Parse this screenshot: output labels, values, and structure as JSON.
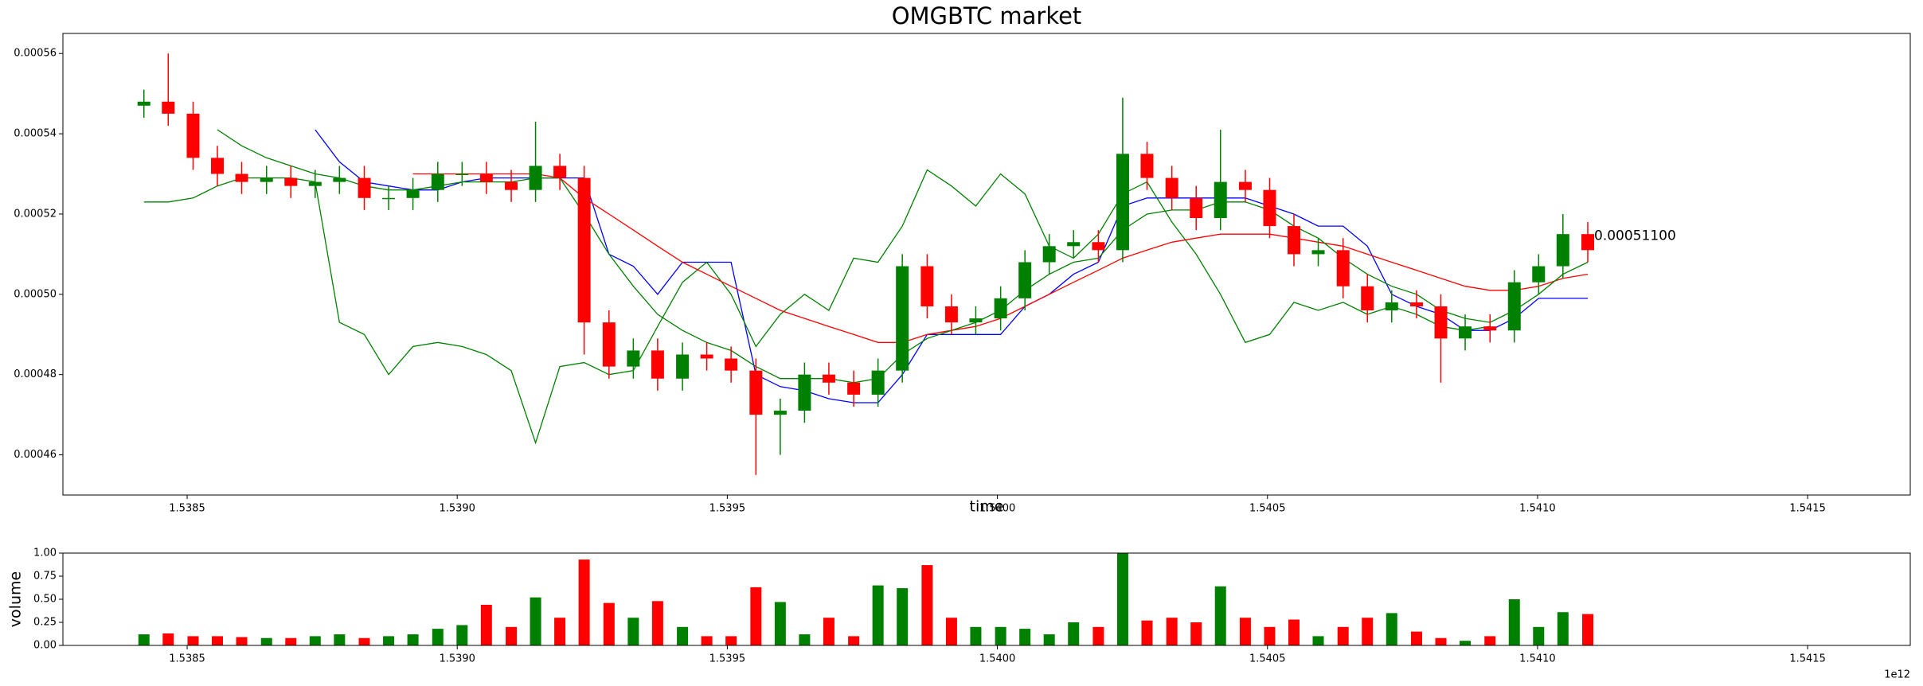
{
  "chart_data": [
    {
      "type": "candlestick",
      "title": "OMGBTC market",
      "xlabel": "time",
      "x_offset_label": "1e12",
      "up_color": "#008000",
      "down_color": "#ff0000",
      "xlim": [
        1.53827,
        1.54169
      ],
      "xticks": [
        1.5385,
        {
          "value": 1.539,
          "label": "1.5390"
        },
        1.5395,
        {
          "value": 1.54,
          "label": "1.5400"
        },
        1.5405,
        {
          "value": 1.541,
          "label": "1.5410"
        },
        1.5415
      ],
      "ylim": [
        0.00045,
        0.000565
      ],
      "yticks": [
        0.00046,
        0.00048,
        {
          "value": 0.0005,
          "label": "0.00050"
        },
        0.00052,
        0.00054,
        0.00056
      ],
      "x": [
        1.53842,
        1.538465,
        1.538511,
        1.538556,
        1.538601,
        1.538647,
        1.538692,
        1.538737,
        1.538782,
        1.538828,
        1.538873,
        1.538918,
        1.538964,
        1.539009,
        1.539054,
        1.5391,
        1.539145,
        1.53919,
        1.539235,
        1.539281,
        1.539326,
        1.539371,
        1.539417,
        1.539462,
        1.539507,
        1.539553,
        1.539598,
        1.539643,
        1.539688,
        1.539734,
        1.539779,
        1.539824,
        1.53987,
        1.539915,
        1.53996,
        1.540006,
        1.540051,
        1.540096,
        1.540141,
        1.540187,
        1.540232,
        1.540277,
        1.540323,
        1.540368,
        1.540413,
        1.540459,
        1.540504,
        1.540549,
        1.540594,
        1.54064,
        1.540685,
        1.54073,
        1.540776,
        1.540821,
        1.540866,
        1.540912,
        1.540957,
        1.541002,
        1.541047,
        1.541093
      ],
      "open": [
        0.000547,
        0.000548,
        0.000545,
        0.000534,
        0.00053,
        0.000528,
        0.000529,
        0.000527,
        0.000528,
        0.000529,
        0.000524,
        0.000524,
        0.000526,
        0.00053,
        0.00053,
        0.000528,
        0.000526,
        0.000532,
        0.000529,
        0.000493,
        0.000482,
        0.000486,
        0.000479,
        0.000485,
        0.000484,
        0.000481,
        0.00047,
        0.000471,
        0.00048,
        0.000478,
        0.000475,
        0.000481,
        0.000507,
        0.000497,
        0.000493,
        0.000494,
        0.000499,
        0.000508,
        0.000512,
        0.000513,
        0.000511,
        0.000535,
        0.000529,
        0.000524,
        0.000519,
        0.000528,
        0.000526,
        0.000517,
        0.00051,
        0.000511,
        0.000502,
        0.000496,
        0.000498,
        0.000497,
        0.000489,
        0.000492,
        0.000491,
        0.000503,
        0.000507,
        0.000515
      ],
      "close": [
        0.000548,
        0.000545,
        0.000534,
        0.00053,
        0.000528,
        0.000529,
        0.000527,
        0.000528,
        0.000529,
        0.000524,
        0.000524,
        0.000526,
        0.00053,
        0.00053,
        0.000528,
        0.000526,
        0.000532,
        0.000529,
        0.000493,
        0.000482,
        0.000486,
        0.000479,
        0.000485,
        0.000484,
        0.000481,
        0.00047,
        0.000471,
        0.00048,
        0.000478,
        0.000475,
        0.000481,
        0.000507,
        0.000497,
        0.000493,
        0.000494,
        0.000499,
        0.000508,
        0.000512,
        0.000513,
        0.000511,
        0.000535,
        0.000529,
        0.000524,
        0.000519,
        0.000528,
        0.000526,
        0.000517,
        0.00051,
        0.000511,
        0.000502,
        0.000496,
        0.000498,
        0.000497,
        0.000489,
        0.000492,
        0.000491,
        0.000503,
        0.000507,
        0.000515,
        0.000511
      ],
      "high": [
        0.000551,
        0.00056,
        0.000548,
        0.000537,
        0.000533,
        0.000532,
        0.000532,
        0.000531,
        0.000532,
        0.000532,
        0.000527,
        0.000529,
        0.000533,
        0.000533,
        0.000533,
        0.000531,
        0.000543,
        0.000535,
        0.000532,
        0.000496,
        0.000489,
        0.000489,
        0.000488,
        0.000488,
        0.000487,
        0.000484,
        0.000474,
        0.000483,
        0.000483,
        0.000481,
        0.000484,
        0.00051,
        0.00051,
        0.0005,
        0.000497,
        0.000502,
        0.000511,
        0.000515,
        0.000516,
        0.000516,
        0.000549,
        0.000538,
        0.000532,
        0.000527,
        0.000541,
        0.000531,
        0.000529,
        0.00052,
        0.000514,
        0.000514,
        0.000505,
        0.000501,
        0.000501,
        0.0005,
        0.000495,
        0.000495,
        0.000506,
        0.00051,
        0.00052,
        0.000518
      ],
      "low": [
        0.000544,
        0.000542,
        0.000531,
        0.000527,
        0.000525,
        0.000525,
        0.000524,
        0.000524,
        0.000525,
        0.000521,
        0.000521,
        0.000521,
        0.000523,
        0.000527,
        0.000525,
        0.000523,
        0.000523,
        0.000526,
        0.000485,
        0.000479,
        0.000479,
        0.000476,
        0.000476,
        0.000481,
        0.000478,
        0.000455,
        0.00046,
        0.000468,
        0.000475,
        0.000472,
        0.000472,
        0.000478,
        0.000494,
        0.00049,
        0.00049,
        0.000491,
        0.000496,
        0.000505,
        0.000509,
        0.000508,
        0.000508,
        0.000526,
        0.000521,
        0.000516,
        0.000516,
        0.000523,
        0.000514,
        0.000507,
        0.000507,
        0.000499,
        0.000493,
        0.000493,
        0.000494,
        0.000478,
        0.000486,
        0.000488,
        0.000488,
        0.0005,
        0.000504,
        0.000508
      ],
      "annotation": "0.00051100",
      "overlays": [
        {
          "color": "#0000ff",
          "values": [
            null,
            null,
            null,
            null,
            null,
            null,
            null,
            0.000541,
            0.000533,
            0.000528,
            0.000527,
            0.000526,
            0.000526,
            0.000528,
            0.000529,
            0.000529,
            0.000529,
            0.000529,
            0.000529,
            0.00051,
            0.000507,
            0.0005,
            0.000508,
            0.000508,
            0.000508,
            0.00048,
            0.000477,
            0.000476,
            0.000474,
            0.000473,
            0.000473,
            0.00048,
            0.00049,
            0.00049,
            0.00049,
            0.00049,
            0.000497,
            0.0005,
            0.000505,
            0.000508,
            0.000522,
            0.000524,
            0.000524,
            0.000524,
            0.000524,
            0.000524,
            0.000522,
            0.00052,
            0.000517,
            0.000517,
            0.000512,
            0.0005,
            0.000497,
            0.000495,
            0.000491,
            0.000491,
            0.000494,
            0.000499,
            0.000499,
            0.000499
          ]
        },
        {
          "color": "#008000",
          "values": [
            0.000523,
            0.000523,
            0.000524,
            0.000527,
            0.000529,
            0.000529,
            0.000529,
            0.000528,
            0.000493,
            0.00049,
            0.00048,
            0.000487,
            0.000488,
            0.000487,
            0.000485,
            0.000481,
            0.000463,
            0.000482,
            0.000483,
            0.00048,
            0.000481,
            0.000492,
            0.000503,
            0.000508,
            0.0005,
            0.000487,
            0.000495,
            0.0005,
            0.000496,
            0.000509,
            0.000508,
            0.000517,
            0.000531,
            0.000527,
            0.000522,
            0.00053,
            0.000525,
            0.000512,
            0.000509,
            0.000515,
            0.000525,
            0.000528,
            0.000518,
            0.00051,
            0.0005,
            0.000488,
            0.00049,
            0.000498,
            0.000496,
            0.000498,
            0.000495,
            0.000497,
            0.000495,
            0.000492,
            0.000491,
            0.000492,
            null,
            null,
            null,
            null
          ]
        },
        {
          "color": "#ff0000",
          "values": [
            null,
            null,
            null,
            null,
            null,
            null,
            null,
            null,
            null,
            null,
            null,
            0.00053,
            0.00053,
            0.00053,
            0.00053,
            0.00053,
            0.00053,
            0.000529,
            0.000524,
            0.00052,
            0.000516,
            0.000512,
            0.000508,
            0.000505,
            0.000502,
            0.000499,
            0.000496,
            0.000494,
            0.000492,
            0.00049,
            0.000488,
            0.000488,
            0.00049,
            0.000491,
            0.000492,
            0.000494,
            0.000497,
            0.0005,
            0.000503,
            0.000506,
            0.000509,
            0.000511,
            0.000513,
            0.000514,
            0.000515,
            0.000515,
            0.000515,
            0.000514,
            0.000513,
            0.000512,
            0.00051,
            0.000508,
            0.000506,
            0.000504,
            0.000502,
            0.000501,
            0.000501,
            0.000502,
            0.000504,
            0.000505
          ]
        },
        {
          "color": "#008000",
          "values": [
            null,
            null,
            null,
            0.000541,
            0.000537,
            0.000534,
            0.000532,
            0.00053,
            0.000529,
            0.000527,
            0.000526,
            0.000526,
            0.000527,
            0.000528,
            0.000528,
            0.000528,
            0.000529,
            0.000529,
            0.00052,
            0.00051,
            0.000502,
            0.000495,
            0.000491,
            0.000488,
            0.000486,
            0.000482,
            0.000479,
            0.000479,
            0.000479,
            0.000478,
            0.000479,
            0.000485,
            0.000489,
            0.000491,
            0.000493,
            0.000496,
            0.000501,
            0.000505,
            0.000508,
            0.000509,
            0.000516,
            0.00052,
            0.000521,
            0.000521,
            0.000523,
            0.000523,
            0.000521,
            0.000517,
            0.000514,
            0.000509,
            0.000505,
            0.000502,
            0.0005,
            0.000496,
            0.000494,
            0.000493,
            0.000496,
            0.0005,
            0.000505,
            0.000508
          ]
        }
      ]
    },
    {
      "type": "bar",
      "ylabel": "volume",
      "x_offset_label": "1e12",
      "xlim": [
        1.53827,
        1.54169
      ],
      "xticks": [
        1.5385,
        {
          "value": 1.539,
          "label": "1.5390"
        },
        1.5395,
        {
          "value": 1.54,
          "label": "1.5400"
        },
        1.5405,
        {
          "value": 1.541,
          "label": "1.5410"
        },
        1.5415
      ],
      "ylim": [
        0,
        1
      ],
      "yticks": [
        {
          "value": 0,
          "label": "0.00"
        },
        {
          "value": 0.25,
          "label": "0.25"
        },
        {
          "value": 0.5,
          "label": "0.50"
        },
        {
          "value": 0.75,
          "label": "0.75"
        },
        {
          "value": 1,
          "label": "1.00"
        }
      ],
      "x": [
        1.53842,
        1.538465,
        1.538511,
        1.538556,
        1.538601,
        1.538647,
        1.538692,
        1.538737,
        1.538782,
        1.538828,
        1.538873,
        1.538918,
        1.538964,
        1.539009,
        1.539054,
        1.5391,
        1.539145,
        1.53919,
        1.539235,
        1.539281,
        1.539326,
        1.539371,
        1.539417,
        1.539462,
        1.539507,
        1.539553,
        1.539598,
        1.539643,
        1.539688,
        1.539734,
        1.539779,
        1.539824,
        1.53987,
        1.539915,
        1.53996,
        1.540006,
        1.540051,
        1.540096,
        1.540141,
        1.540187,
        1.540232,
        1.540277,
        1.540323,
        1.540368,
        1.540413,
        1.540459,
        1.540504,
        1.540549,
        1.540594,
        1.54064,
        1.540685,
        1.54073,
        1.540776,
        1.540821,
        1.540866,
        1.540912,
        1.540957,
        1.541002,
        1.541047,
        1.541093
      ],
      "values": [
        0.12,
        0.13,
        0.1,
        0.1,
        0.09,
        0.08,
        0.08,
        0.1,
        0.12,
        0.08,
        0.1,
        0.12,
        0.18,
        0.22,
        0.44,
        0.2,
        0.52,
        0.3,
        0.93,
        0.46,
        0.3,
        0.48,
        0.2,
        0.1,
        0.1,
        0.63,
        0.47,
        0.12,
        0.3,
        0.1,
        0.65,
        0.62,
        0.87,
        0.3,
        0.2,
        0.2,
        0.18,
        0.12,
        0.25,
        0.2,
        1.0,
        0.27,
        0.3,
        0.25,
        0.64,
        0.3,
        0.2,
        0.28,
        0.1,
        0.2,
        0.3,
        0.35,
        0.15,
        0.08,
        0.05,
        0.1,
        0.5,
        0.2,
        0.36,
        0.34
      ],
      "colors": [
        "#008000",
        "#ff0000",
        "#ff0000",
        "#ff0000",
        "#ff0000",
        "#008000",
        "#ff0000",
        "#008000",
        "#008000",
        "#ff0000",
        "#008000",
        "#008000",
        "#008000",
        "#008000",
        "#ff0000",
        "#ff0000",
        "#008000",
        "#ff0000",
        "#ff0000",
        "#ff0000",
        "#008000",
        "#ff0000",
        "#008000",
        "#ff0000",
        "#ff0000",
        "#ff0000",
        "#008000",
        "#008000",
        "#ff0000",
        "#ff0000",
        "#008000",
        "#008000",
        "#ff0000",
        "#ff0000",
        "#008000",
        "#008000",
        "#008000",
        "#008000",
        "#008000",
        "#ff0000",
        "#008000",
        "#ff0000",
        "#ff0000",
        "#ff0000",
        "#008000",
        "#ff0000",
        "#ff0000",
        "#ff0000",
        "#008000",
        "#ff0000",
        "#ff0000",
        "#008000",
        "#ff0000",
        "#ff0000",
        "#008000",
        "#ff0000",
        "#008000",
        "#008000",
        "#008000",
        "#ff0000"
      ]
    }
  ]
}
